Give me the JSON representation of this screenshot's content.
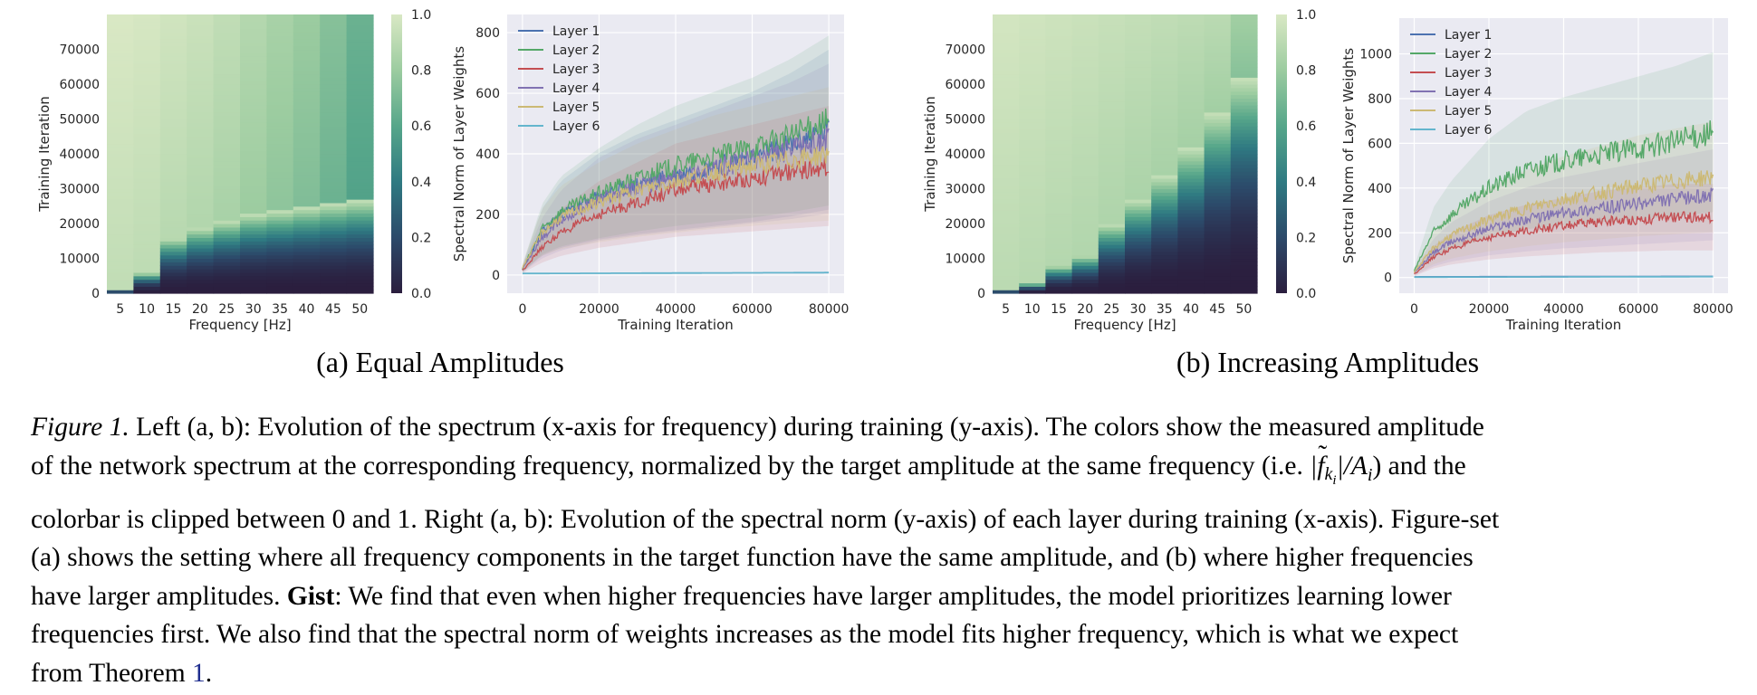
{
  "colors": {
    "layer_1": "#4c72b0",
    "layer_2": "#55a868",
    "layer_3": "#c44e52",
    "layer_4": "#8172b2",
    "layer_5": "#ccb974",
    "layer_6": "#64b5cd",
    "plot_background": "#eaeaf2",
    "grid": "#ffffff",
    "colormap": [
      "#2b1e3e",
      "#2c4a6a",
      "#2f7a82",
      "#56a68a",
      "#9ccca0",
      "#d9e8c4"
    ]
  },
  "subcaptions": {
    "a": "(a) Equal Amplitudes",
    "b": "(b) Increasing Amplitudes"
  },
  "chart_data": [
    {
      "id": "a-heatmap",
      "type": "heatmap",
      "xlabel": "Frequency [Hz]",
      "ylabel": "Training Iteration",
      "x_ticks": [
        5,
        10,
        15,
        20,
        25,
        30,
        35,
        40,
        45,
        50
      ],
      "y_ticks": [
        0,
        10000,
        20000,
        30000,
        40000,
        50000,
        60000,
        70000
      ],
      "ylim": [
        0,
        80000
      ],
      "colorbar": {
        "range": [
          0,
          1
        ],
        "ticks": [
          "0.0",
          "0.2",
          "0.4",
          "0.6",
          "0.8",
          "1.0"
        ]
      },
      "learned_at_iteration": [
        1000,
        6000,
        16000,
        19000,
        21000,
        23000,
        24000,
        25000,
        26000,
        27000
      ],
      "final_value": [
        1.0,
        0.99,
        0.97,
        0.95,
        0.92,
        0.88,
        0.84,
        0.8,
        0.74,
        0.66
      ]
    },
    {
      "id": "a-line",
      "type": "line",
      "xlabel": "Training Iteration",
      "ylabel": "Spectral Norm of Layer Weights",
      "x_ticks": [
        0,
        20000,
        40000,
        60000,
        80000
      ],
      "y_ticks": [
        0,
        200,
        400,
        600,
        800
      ],
      "xlim": [
        -4000,
        84000
      ],
      "ylim": [
        -60,
        860
      ],
      "legend": "top-left",
      "series": [
        {
          "name": "Layer 1",
          "key": "layer_1",
          "x": [
            0,
            5000,
            10000,
            20000,
            30000,
            40000,
            50000,
            60000,
            70000,
            80000
          ],
          "y": [
            20,
            140,
            200,
            260,
            300,
            330,
            360,
            390,
            430,
            480
          ]
        },
        {
          "name": "Layer 2",
          "key": "layer_2",
          "x": [
            0,
            5000,
            10000,
            20000,
            30000,
            40000,
            50000,
            60000,
            70000,
            80000
          ],
          "y": [
            20,
            150,
            210,
            270,
            320,
            360,
            390,
            420,
            460,
            510
          ]
        },
        {
          "name": "Layer 3",
          "key": "layer_3",
          "x": [
            0,
            5000,
            10000,
            20000,
            30000,
            40000,
            50000,
            60000,
            70000,
            80000
          ],
          "y": [
            15,
            90,
            140,
            200,
            240,
            280,
            300,
            320,
            340,
            360
          ]
        },
        {
          "name": "Layer 4",
          "key": "layer_4",
          "x": [
            0,
            5000,
            10000,
            20000,
            30000,
            40000,
            50000,
            60000,
            70000,
            80000
          ],
          "y": [
            20,
            120,
            180,
            250,
            290,
            320,
            350,
            380,
            410,
            450
          ]
        },
        {
          "name": "Layer 5",
          "key": "layer_5",
          "x": [
            0,
            5000,
            10000,
            20000,
            30000,
            40000,
            50000,
            60000,
            70000,
            80000
          ],
          "y": [
            25,
            140,
            190,
            240,
            280,
            310,
            340,
            360,
            380,
            400
          ]
        },
        {
          "name": "Layer 6",
          "key": "layer_6",
          "x": [
            0,
            80000
          ],
          "y": [
            5,
            8
          ]
        }
      ]
    },
    {
      "id": "b-heatmap",
      "type": "heatmap",
      "xlabel": "Frequency [Hz]",
      "ylabel": "Training Iteration",
      "x_ticks": [
        5,
        10,
        15,
        20,
        25,
        30,
        35,
        40,
        45,
        50
      ],
      "y_ticks": [
        0,
        10000,
        20000,
        30000,
        40000,
        50000,
        60000,
        70000
      ],
      "ylim": [
        0,
        80000
      ],
      "colorbar": {
        "range": [
          0,
          1
        ],
        "ticks": [
          "0.0",
          "0.2",
          "0.4",
          "0.6",
          "0.8",
          "1.0"
        ]
      },
      "learned_at_iteration": [
        1000,
        3000,
        8000,
        11000,
        20000,
        27000,
        34000,
        42000,
        52000,
        62000
      ],
      "final_value": [
        0.98,
        0.97,
        0.96,
        0.95,
        0.94,
        0.93,
        0.92,
        0.91,
        0.9,
        0.82
      ]
    },
    {
      "id": "b-line",
      "type": "line",
      "xlabel": "Training Iteration",
      "ylabel": "Spectral Norm of Layer Weights",
      "x_ticks": [
        0,
        20000,
        40000,
        60000,
        80000
      ],
      "y_ticks": [
        0,
        200,
        400,
        600,
        800,
        1000
      ],
      "xlim": [
        -4000,
        84000
      ],
      "ylim": [
        -70,
        1160
      ],
      "legend": "top-left",
      "series": [
        {
          "name": "Layer 1",
          "key": "layer_1",
          "x": [
            0,
            80000
          ],
          "y": [
            3,
            5
          ]
        },
        {
          "name": "Layer 2",
          "key": "layer_2",
          "x": [
            0,
            5000,
            10000,
            20000,
            30000,
            40000,
            50000,
            60000,
            70000,
            80000
          ],
          "y": [
            30,
            200,
            280,
            400,
            480,
            520,
            550,
            580,
            610,
            650
          ]
        },
        {
          "name": "Layer 3",
          "key": "layer_3",
          "x": [
            0,
            5000,
            10000,
            20000,
            30000,
            40000,
            50000,
            60000,
            70000,
            80000
          ],
          "y": [
            15,
            90,
            130,
            180,
            210,
            230,
            250,
            260,
            270,
            270
          ]
        },
        {
          "name": "Layer 4",
          "key": "layer_4",
          "x": [
            0,
            5000,
            10000,
            20000,
            30000,
            40000,
            50000,
            60000,
            70000,
            80000
          ],
          "y": [
            20,
            110,
            160,
            220,
            260,
            290,
            310,
            330,
            350,
            370
          ]
        },
        {
          "name": "Layer 5",
          "key": "layer_5",
          "x": [
            0,
            5000,
            10000,
            20000,
            30000,
            40000,
            50000,
            60000,
            70000,
            80000
          ],
          "y": [
            25,
            130,
            190,
            260,
            310,
            350,
            380,
            410,
            430,
            450
          ]
        },
        {
          "name": "Layer 6",
          "key": "layer_6",
          "x": [
            0,
            80000
          ],
          "y": [
            2,
            4
          ]
        }
      ]
    }
  ],
  "caption": {
    "fig_label": "Figure 1.",
    "line1_rest": " Left (a, b): Evolution of the spectrum (x-axis for frequency) during training (y-axis). The colors show the measured amplitude",
    "line2_start": "of the network spectrum at the corresponding frequency, normalized by the target amplitude at the same frequency (i.e. ",
    "line2_math": "|f̃_{k_i}|/A_i",
    "line2_end": ") and the",
    "line3": "colorbar is clipped between 0 and 1. Right (a, b): Evolution of the spectral norm (y-axis) of each layer during training (x-axis). Figure-set",
    "line4": "(a) shows the setting where all frequency components in the target function have the same amplitude, and (b) where higher frequencies",
    "line5_start": "have larger amplitudes. ",
    "line5_bold": "Gist",
    "line5_rest": ": We find that even when higher frequencies have larger amplitudes, the model prioritizes learning lower",
    "line6": "frequencies first. We also find that the spectral norm of weights increases as the model fits higher frequency, which is what we expect",
    "line7_start": "from Theorem ",
    "line7_ref": "1",
    "line7_end": "."
  }
}
